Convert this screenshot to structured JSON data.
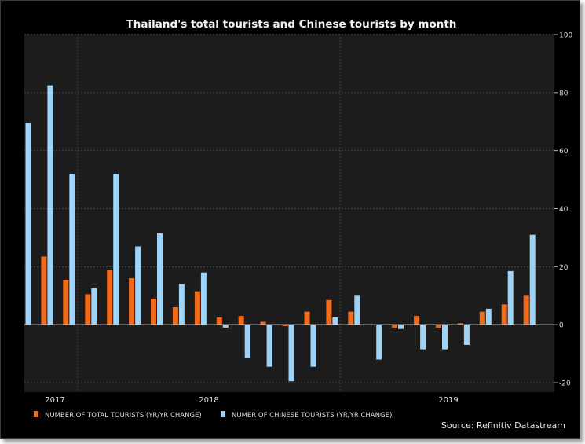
{
  "chart_data": {
    "type": "bar",
    "title": "Thailand's total tourists and Chinese tourists by month",
    "source": "Source: Refinitiv Datastream",
    "ylim": [
      -20,
      100
    ],
    "yticks": [
      -20,
      0,
      20,
      40,
      60,
      80,
      100
    ],
    "x_year_labels": [
      "2017",
      "2018",
      "2019"
    ],
    "series": [
      {
        "name": "NUMBER OF TOTAL TOURISTS (YR/YR CHANGE)",
        "color": "#f26b1d",
        "values": [
          null,
          23.5,
          15.5,
          10.5,
          19,
          16,
          9,
          6,
          11.5,
          2.5,
          3,
          1,
          -0.5,
          4.5,
          8.5,
          4.5,
          -0.2,
          -1,
          3,
          -1,
          0.5,
          4.5,
          7,
          10
        ]
      },
      {
        "name": "NUMER OF CHINESE TOURISTS (YR/YR CHANGE)",
        "color": "#9fd2f7",
        "values": [
          69.5,
          82.5,
          52,
          12.5,
          52,
          27,
          31.5,
          14,
          18,
          -1,
          -11.5,
          -14.5,
          -19.5,
          -14.5,
          2.5,
          10,
          -12,
          -1.5,
          -8.5,
          -8.5,
          -7,
          5.5,
          18.5,
          31
        ]
      }
    ]
  }
}
